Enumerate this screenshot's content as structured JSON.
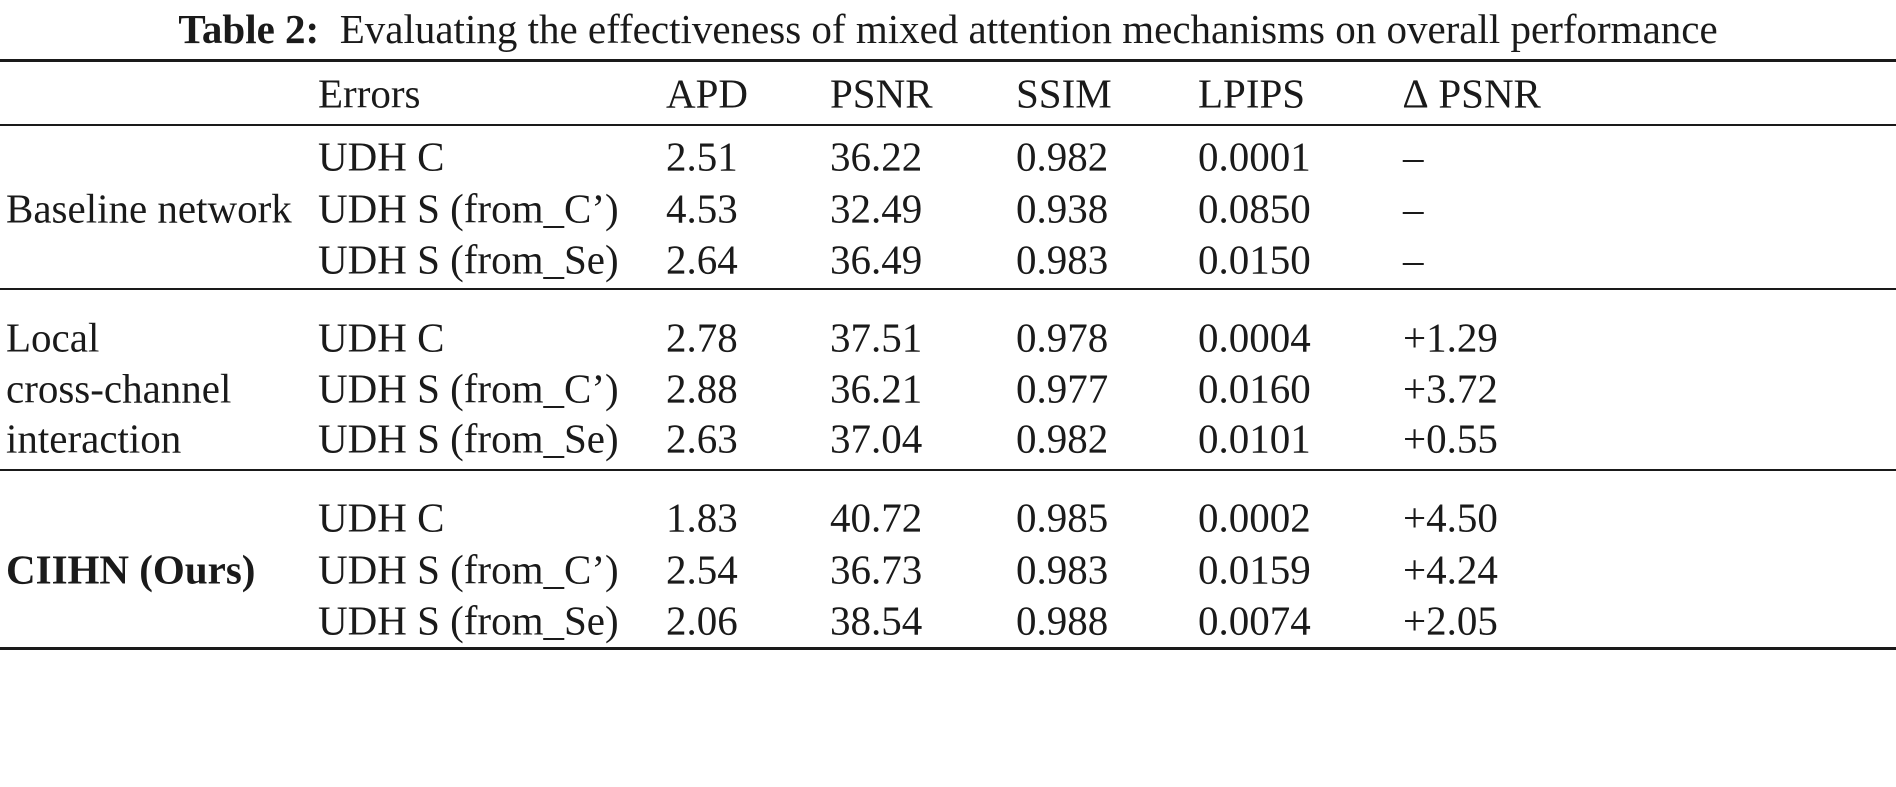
{
  "caption": {
    "label": "Table 2:",
    "text": "Evaluating the effectiveness of mixed attention mechanisms on overall performance"
  },
  "table": {
    "headers": [
      "",
      "Errors",
      "APD",
      "PSNR",
      "SSIM",
      "LPIPS",
      "∆ PSNR"
    ],
    "groups": [
      {
        "name_lines": [
          "Baseline network"
        ],
        "bold": false,
        "rows": [
          [
            "UDH C",
            "2.51",
            "36.22",
            "0.982",
            "0.0001",
            "–"
          ],
          [
            "UDH S (from_C’)",
            "4.53",
            "32.49",
            "0.938",
            "0.0850",
            "–"
          ],
          [
            "UDH S (from_Se)",
            "2.64",
            "36.49",
            "0.983",
            "0.0150",
            "–"
          ]
        ]
      },
      {
        "name_lines": [
          "Local",
          "cross-channel",
          "interaction"
        ],
        "bold": false,
        "rows": [
          [
            "UDH C",
            "2.78",
            "37.51",
            "0.978",
            "0.0004",
            "+1.29"
          ],
          [
            "UDH S (from_C’)",
            "2.88",
            "36.21",
            "0.977",
            "0.0160",
            "+3.72"
          ],
          [
            "UDH S (from_Se)",
            "2.63",
            "37.04",
            "0.982",
            "0.0101",
            "+0.55"
          ]
        ]
      },
      {
        "name_lines": [
          "CIIHN (Ours)"
        ],
        "bold": true,
        "rows": [
          [
            "UDH C",
            "1.83",
            "40.72",
            "0.985",
            "0.0002",
            "+4.50"
          ],
          [
            "UDH S (from_C’)",
            "2.54",
            "36.73",
            "0.983",
            "0.0159",
            "+4.24"
          ],
          [
            "UDH S (from_Se)",
            "2.06",
            "38.54",
            "0.988",
            "0.0074",
            "+2.05"
          ]
        ]
      }
    ]
  }
}
